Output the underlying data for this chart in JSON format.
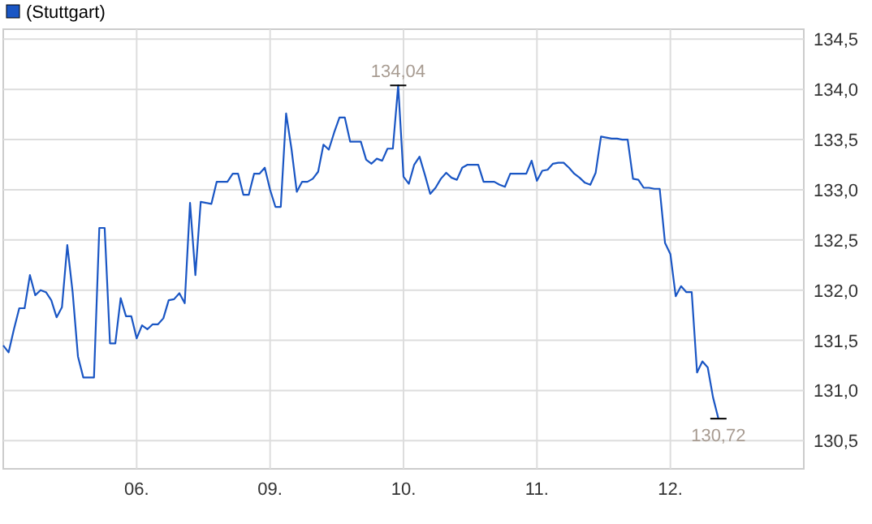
{
  "chart_data": {
    "type": "line",
    "legend": "top left",
    "grid": true,
    "categories": [
      null,
      null,
      null,
      null,
      null,
      null,
      null,
      null,
      null,
      null,
      null,
      null,
      null,
      null,
      null,
      null,
      null,
      null,
      null,
      null,
      null,
      null,
      null,
      null,
      null,
      "06.",
      null,
      null,
      null,
      null,
      null,
      null,
      null,
      null,
      null,
      null,
      null,
      null,
      null,
      null,
      null,
      null,
      null,
      null,
      null,
      null,
      null,
      null,
      null,
      null,
      "09.",
      null,
      null,
      null,
      null,
      null,
      null,
      null,
      null,
      null,
      null,
      null,
      null,
      null,
      null,
      null,
      null,
      null,
      null,
      null,
      null,
      null,
      null,
      null,
      null,
      "10.",
      null,
      null,
      null,
      null,
      null,
      null,
      null,
      null,
      null,
      null,
      null,
      null,
      null,
      null,
      null,
      null,
      null,
      null,
      null,
      null,
      null,
      null,
      null,
      null,
      "11.",
      null,
      null,
      null,
      null,
      null,
      null,
      null,
      null,
      null,
      null,
      null,
      null,
      null,
      null,
      null,
      null,
      null,
      null,
      null,
      null,
      null,
      null,
      null,
      null,
      "12.",
      null,
      null,
      null,
      null,
      null,
      null,
      null,
      null,
      null,
      null,
      null,
      null,
      null,
      null,
      null,
      null,
      null,
      null,
      null,
      null,
      null,
      null,
      null,
      null,
      null
    ],
    "ylim": [
      130.22,
      134.6
    ],
    "yticks": [
      {
        "value": 130.5,
        "label": "130,5"
      },
      {
        "value": 131,
        "label": "131,0"
      },
      {
        "value": 131.5,
        "label": "131,5"
      },
      {
        "value": 132,
        "label": "132,0"
      },
      {
        "value": 132.5,
        "label": "132,5"
      },
      {
        "value": 133,
        "label": "133,0"
      },
      {
        "value": 133.5,
        "label": "133,5"
      },
      {
        "value": 134,
        "label": "134,0"
      },
      {
        "value": 134.5,
        "label": "134,5"
      }
    ],
    "annotations": [
      {
        "text": "134,04",
        "y": 134.04
      },
      {
        "text": "130,72",
        "y": 130.72
      }
    ],
    "series": [
      {
        "name": "(Stuttgart)",
        "color": "#1a56c4",
        "values": [
          131.45,
          131.38,
          131.61,
          131.82,
          131.82,
          132.15,
          131.95,
          132.0,
          131.98,
          131.9,
          131.73,
          131.83,
          132.45,
          131.98,
          131.34,
          131.13,
          131.13,
          131.13,
          132.62,
          132.62,
          131.47,
          131.47,
          131.92,
          131.74,
          131.74,
          131.52,
          131.65,
          131.61,
          131.66,
          131.66,
          131.72,
          131.9,
          131.91,
          131.97,
          131.87,
          132.87,
          132.15,
          132.88,
          132.87,
          132.86,
          133.08,
          133.08,
          133.08,
          133.16,
          133.16,
          132.95,
          132.95,
          133.16,
          133.16,
          133.22,
          133.0,
          132.83,
          132.83,
          133.76,
          133.41,
          132.98,
          133.08,
          133.08,
          133.11,
          133.18,
          133.45,
          133.4,
          133.57,
          133.72,
          133.72,
          133.48,
          133.48,
          133.48,
          133.3,
          133.26,
          133.31,
          133.29,
          133.41,
          133.41,
          134.04,
          133.13,
          133.06,
          133.25,
          133.33,
          133.15,
          132.96,
          133.02,
          133.11,
          133.17,
          133.12,
          133.1,
          133.22,
          133.25,
          133.25,
          133.25,
          133.08,
          133.08,
          133.08,
          133.05,
          133.03,
          133.16,
          133.16,
          133.16,
          133.16,
          133.29,
          133.09,
          133.19,
          133.2,
          133.26,
          133.27,
          133.27,
          133.22,
          133.16,
          133.12,
          133.07,
          133.05,
          133.17,
          133.53,
          133.52,
          133.51,
          133.51,
          133.5,
          133.5,
          133.11,
          133.1,
          133.02,
          133.02,
          133.01,
          133.01,
          132.47,
          132.36,
          131.94,
          132.04,
          131.98,
          131.98,
          131.18,
          131.29,
          131.23,
          130.93,
          130.72,
          null,
          null,
          null,
          null,
          null,
          null,
          null,
          null,
          null,
          null,
          null,
          null,
          null,
          null,
          null,
          null
        ]
      }
    ]
  }
}
